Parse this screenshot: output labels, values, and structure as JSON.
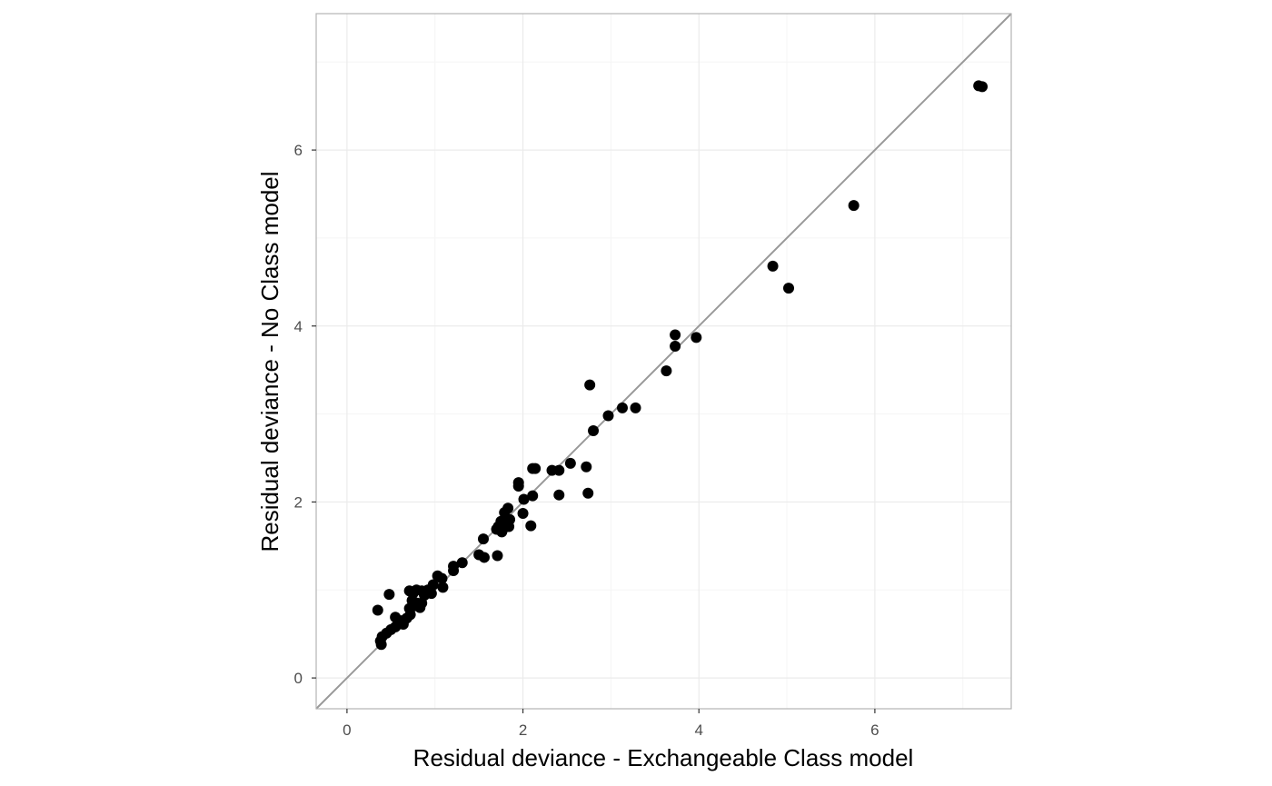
{
  "chart_data": {
    "type": "scatter",
    "title": "",
    "xlabel": "Residual deviance - Exchangeable Class model",
    "ylabel": "Residual deviance - No Class model",
    "xlim": [
      -0.35,
      7.55
    ],
    "ylim": [
      -0.35,
      7.55
    ],
    "x_ticks": [
      0,
      2,
      4,
      6
    ],
    "y_ticks": [
      0,
      2,
      4,
      6
    ],
    "x_tick_labels": [
      "0",
      "2",
      "4",
      "6"
    ],
    "y_tick_labels": [
      "0",
      "2",
      "4",
      "6"
    ],
    "grid": true,
    "reference_line": {
      "slope": 1,
      "intercept": 0
    },
    "colors": {
      "points": "#000000",
      "reference_line": "#999999",
      "panel_border": "#b3b3b3",
      "grid_major": "#ebebeb",
      "grid_minor": "#f5f5f5"
    },
    "points": [
      [
        7.18,
        6.73
      ],
      [
        7.22,
        6.72
      ],
      [
        5.76,
        5.37
      ],
      [
        4.84,
        4.68
      ],
      [
        5.02,
        4.43
      ],
      [
        3.73,
        3.9
      ],
      [
        3.73,
        3.77
      ],
      [
        3.97,
        3.87
      ],
      [
        3.63,
        3.49
      ],
      [
        2.76,
        3.33
      ],
      [
        2.8,
        2.81
      ],
      [
        2.97,
        2.98
      ],
      [
        3.13,
        3.07
      ],
      [
        3.28,
        3.07
      ],
      [
        2.54,
        2.44
      ],
      [
        2.72,
        2.4
      ],
      [
        2.41,
        2.36
      ],
      [
        2.33,
        2.36
      ],
      [
        2.11,
        2.38
      ],
      [
        2.14,
        2.38
      ],
      [
        1.95,
        2.22
      ],
      [
        1.95,
        2.18
      ],
      [
        2.01,
        2.03
      ],
      [
        2.11,
        2.07
      ],
      [
        2.41,
        2.08
      ],
      [
        2.74,
        2.1
      ],
      [
        1.83,
        1.93
      ],
      [
        1.79,
        1.88
      ],
      [
        2.0,
        1.87
      ],
      [
        1.85,
        1.8
      ],
      [
        1.75,
        1.78
      ],
      [
        1.7,
        1.69
      ],
      [
        1.77,
        1.69
      ],
      [
        1.72,
        1.72
      ],
      [
        1.84,
        1.72
      ],
      [
        1.76,
        1.66
      ],
      [
        2.09,
        1.73
      ],
      [
        1.55,
        1.58
      ],
      [
        1.5,
        1.4
      ],
      [
        1.56,
        1.37
      ],
      [
        1.71,
        1.39
      ],
      [
        1.31,
        1.31
      ],
      [
        1.21,
        1.27
      ],
      [
        1.21,
        1.22
      ],
      [
        1.03,
        1.16
      ],
      [
        1.08,
        1.13
      ],
      [
        0.98,
        1.06
      ],
      [
        1.09,
        1.03
      ],
      [
        0.96,
        0.96
      ],
      [
        0.92,
        1.0
      ],
      [
        0.88,
        0.94
      ],
      [
        0.85,
        0.99
      ],
      [
        0.79,
        1.0
      ],
      [
        0.75,
        0.96
      ],
      [
        0.71,
        0.99
      ],
      [
        0.48,
        0.95
      ],
      [
        0.74,
        0.88
      ],
      [
        0.8,
        0.85
      ],
      [
        0.85,
        0.85
      ],
      [
        0.77,
        0.82
      ],
      [
        0.83,
        0.8
      ],
      [
        0.71,
        0.79
      ],
      [
        0.35,
        0.77
      ],
      [
        0.72,
        0.72
      ],
      [
        0.68,
        0.68
      ],
      [
        0.55,
        0.69
      ],
      [
        0.62,
        0.65
      ],
      [
        0.64,
        0.61
      ],
      [
        0.58,
        0.61
      ],
      [
        0.55,
        0.58
      ],
      [
        0.5,
        0.55
      ],
      [
        0.45,
        0.51
      ],
      [
        0.4,
        0.47
      ],
      [
        0.38,
        0.42
      ],
      [
        0.39,
        0.38
      ]
    ]
  }
}
